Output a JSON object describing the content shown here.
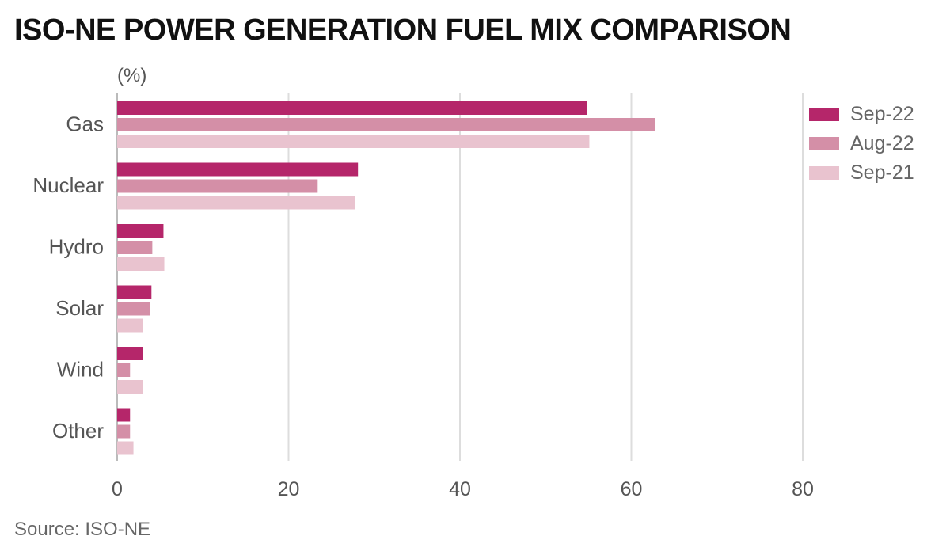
{
  "title": "ISO-NE POWER GENERATION FUEL MIX COMPARISON",
  "unit_label": "(%)",
  "source": "Source: ISO-NE",
  "chart_data": {
    "type": "bar",
    "orientation": "horizontal",
    "categories": [
      "Gas",
      "Nuclear",
      "Hydro",
      "Solar",
      "Wind",
      "Other"
    ],
    "series": [
      {
        "name": "Sep-22",
        "color": "#b5266a",
        "values": [
          54.8,
          28.1,
          5.4,
          4.0,
          3.0,
          1.5
        ]
      },
      {
        "name": "Aug-22",
        "color": "#d48fa7",
        "values": [
          62.8,
          23.4,
          4.1,
          3.8,
          1.5,
          1.5
        ]
      },
      {
        "name": "Sep-21",
        "color": "#e9c3cf",
        "values": [
          55.1,
          27.8,
          5.5,
          3.0,
          3.0,
          1.9
        ]
      }
    ],
    "xlim": [
      0,
      80
    ],
    "xticks": [
      0,
      20,
      40,
      60,
      80
    ],
    "grid": true,
    "legend_position": "top-right"
  }
}
